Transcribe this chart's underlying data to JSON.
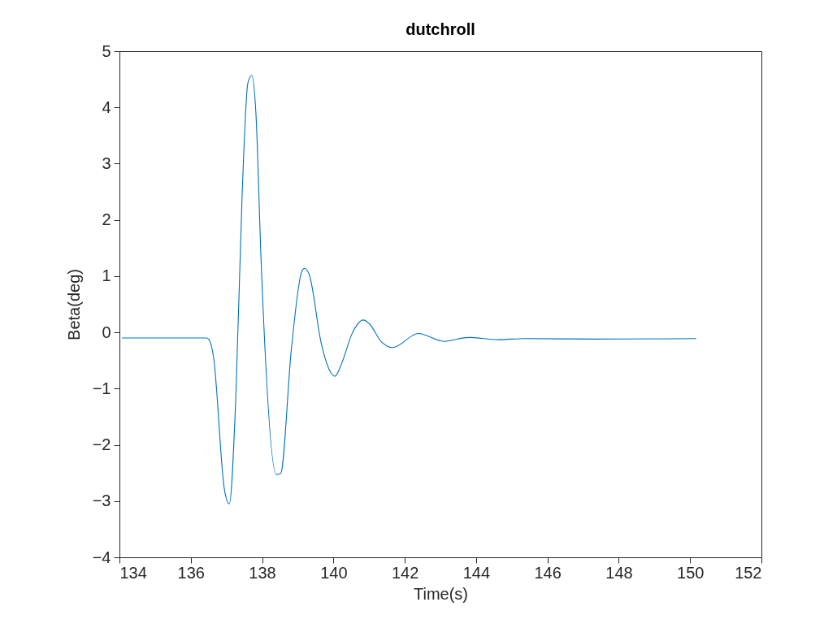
{
  "chart_data": {
    "type": "line",
    "title": "dutchroll",
    "xlabel": "Time(s)",
    "ylabel": "Beta(deg)",
    "xlim": [
      134,
      152
    ],
    "xticks": [
      134,
      136,
      138,
      140,
      142,
      144,
      146,
      148,
      150,
      152
    ],
    "ylim": [
      -4,
      5
    ],
    "yticks": [
      -4,
      -3,
      -2,
      -1,
      0,
      1,
      2,
      3,
      4,
      5
    ],
    "grid": false,
    "marker": "none",
    "line_style": "solid",
    "series": [
      {
        "color": "#0072bd",
        "x": [
          134.07,
          136.44,
          136.53,
          136.64,
          136.94,
          137.08,
          137.26,
          137.44,
          137.6,
          137.71,
          137.83,
          137.97,
          138.4,
          138.52,
          138.82,
          139.11,
          139.19,
          139.32,
          139.66,
          139.92,
          140.04,
          140.25,
          140.51,
          140.84,
          141.01,
          141.35,
          141.66,
          142.38,
          143.1,
          143.79,
          144.62,
          145.38,
          147.35,
          150.17
        ],
        "values": [
          -0.1,
          -0.1,
          -0.15,
          -0.45,
          -2.78,
          -3.05,
          -1.2,
          2.45,
          4.43,
          4.57,
          3.85,
          1.3,
          -2.53,
          -2.51,
          -0.3,
          1.08,
          1.14,
          1.03,
          -0.2,
          -0.71,
          -0.78,
          -0.52,
          -0.04,
          0.22,
          0.15,
          -0.17,
          -0.27,
          -0.02,
          -0.16,
          -0.09,
          -0.13,
          -0.11,
          -0.12,
          -0.11
        ]
      }
    ]
  }
}
